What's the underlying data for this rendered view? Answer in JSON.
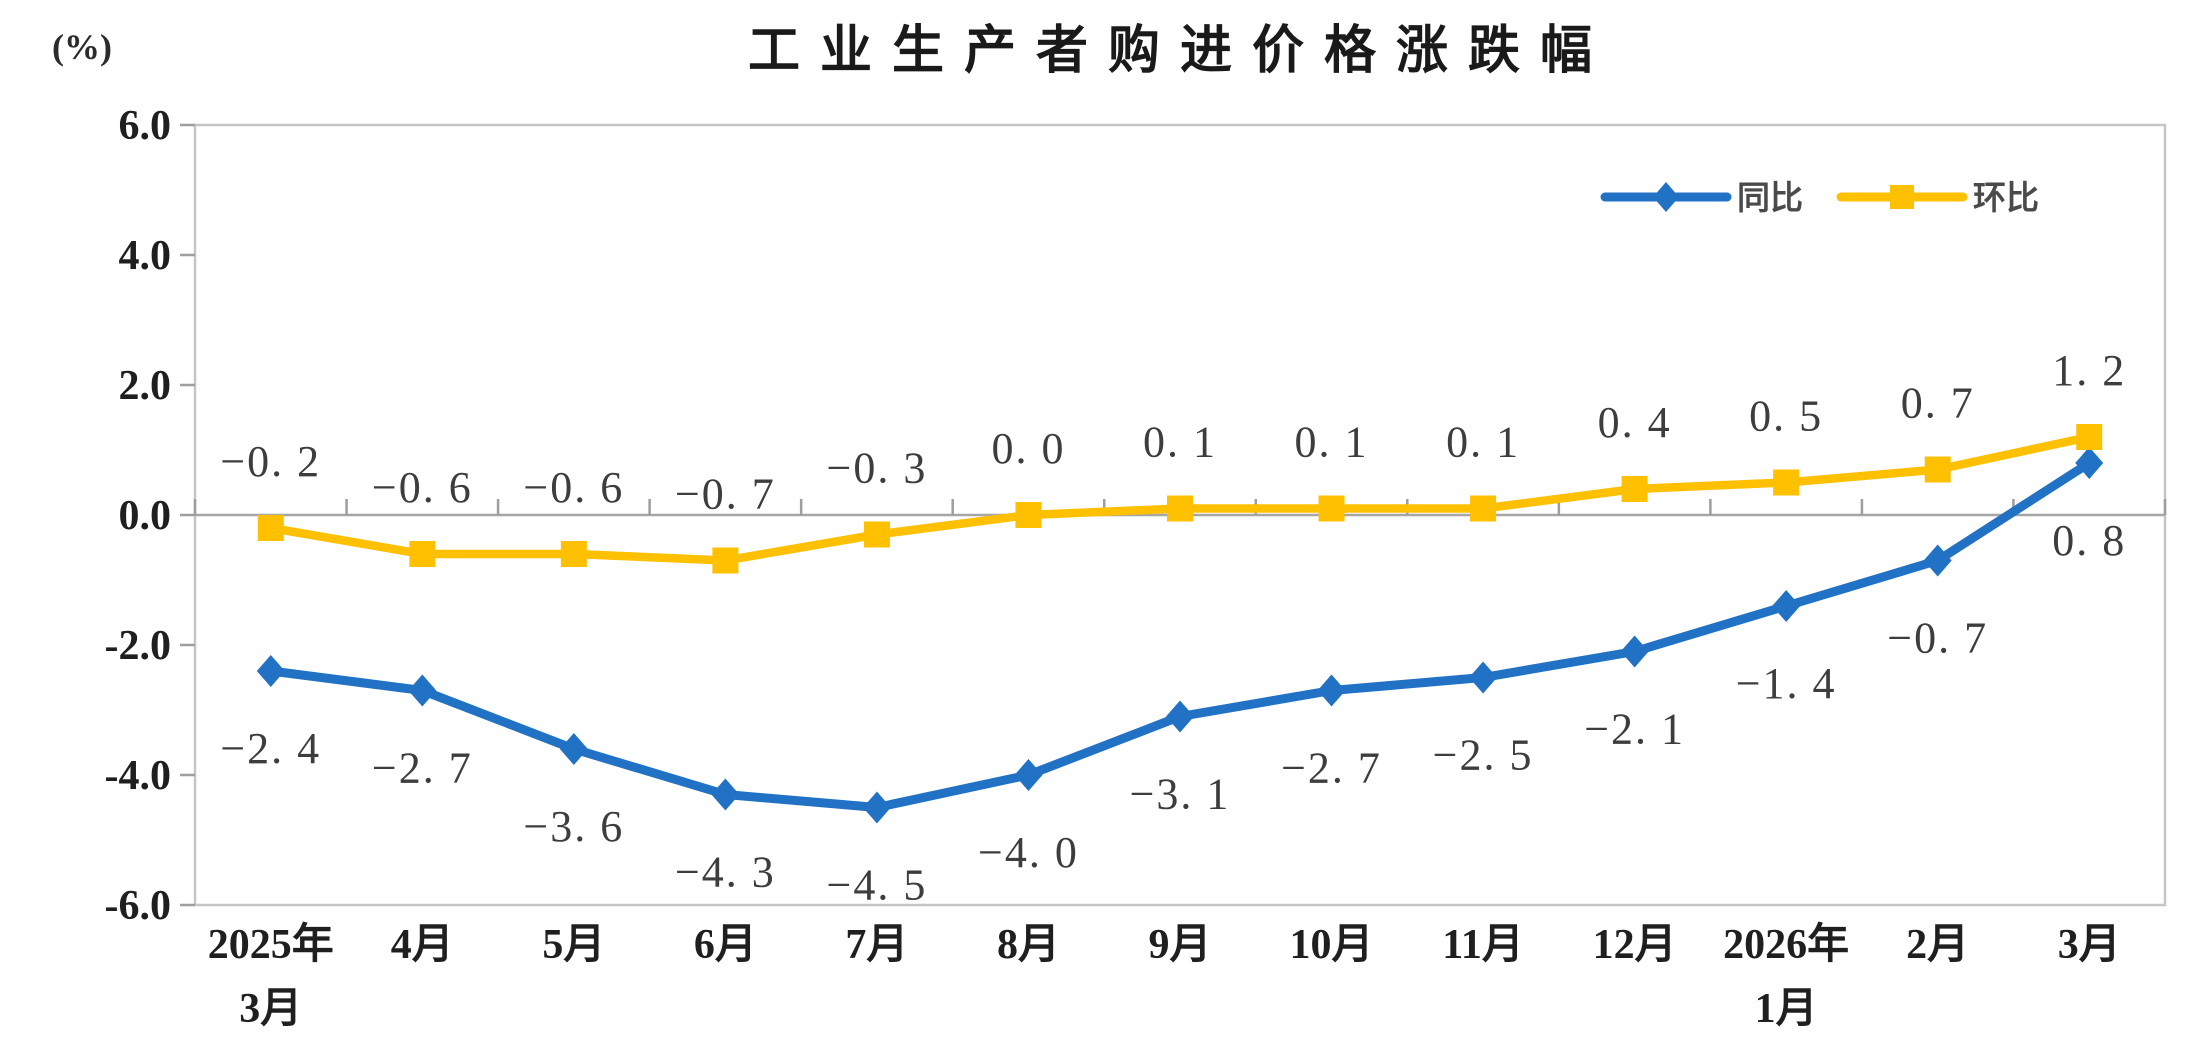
{
  "chart_data": {
    "type": "line",
    "title": "工业生产者购进价格涨跌幅",
    "unit_label": "(%)",
    "categories": [
      [
        "2025年",
        "3月"
      ],
      [
        "4月"
      ],
      [
        "5月"
      ],
      [
        "6月"
      ],
      [
        "7月"
      ],
      [
        "8月"
      ],
      [
        "9月"
      ],
      [
        "10月"
      ],
      [
        "11月"
      ],
      [
        "12月"
      ],
      [
        "2026年",
        "1月"
      ],
      [
        "2月"
      ],
      [
        "3月"
      ]
    ],
    "series": [
      {
        "name": "同比",
        "color": "#2172C4",
        "marker": "diamond",
        "label_position": "below",
        "values": [
          -2.4,
          -2.7,
          -3.6,
          -4.3,
          -4.5,
          -4.0,
          -3.1,
          -2.7,
          -2.5,
          -2.1,
          -1.4,
          -0.7,
          0.8
        ]
      },
      {
        "name": "环比",
        "color": "#FFC000",
        "marker": "square",
        "label_position": "above",
        "values": [
          -0.2,
          -0.6,
          -0.6,
          -0.7,
          -0.3,
          0.0,
          0.1,
          0.1,
          0.1,
          0.4,
          0.5,
          0.7,
          1.2
        ]
      }
    ],
    "ylim": [
      -6.0,
      6.0
    ],
    "ytick_step": 2.0,
    "ytick_labels": [
      "6.0",
      "4.0",
      "2.0",
      "0.0",
      "-2.0",
      "-4.0",
      "-6.0"
    ],
    "grid": false,
    "legend_position": "top-right",
    "colors": {
      "frame": "#C6C6C6",
      "zero_line": "#A6A6A6",
      "tick": "#9E9E9E",
      "text": "#1F1F1F",
      "data_label": "#3D3D3D"
    }
  }
}
